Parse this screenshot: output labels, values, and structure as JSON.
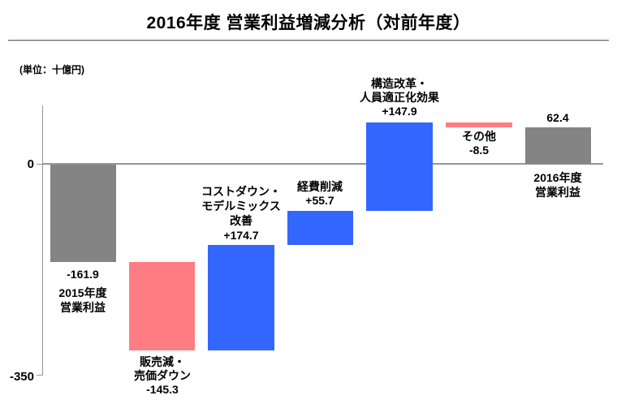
{
  "title": "2016年度 営業利益増減分析（対前年度）",
  "unit_label": "(単位：十億円)",
  "axis": {
    "zero_label": "0",
    "min_label": "-350"
  },
  "colors": {
    "total_bar": "#848484",
    "decrease_bar": "#ff7d82",
    "increase_bar": "#3366ff",
    "axis_line": "#969696"
  },
  "bars": [
    {
      "name_label": "2015年度\n営業利益",
      "value_label": "-161.9",
      "type": "total",
      "color": "#848484"
    },
    {
      "name_label": "販売減・\n売価ダウン",
      "value_label": "-145.3",
      "type": "decrease",
      "color": "#ff7d82"
    },
    {
      "name_label": "コストダウン・\nモデルミックス\n改善",
      "value_label": "+174.7",
      "type": "increase",
      "color": "#3366ff"
    },
    {
      "name_label": "経費削減",
      "value_label": "+55.7",
      "type": "increase",
      "color": "#3366ff"
    },
    {
      "name_label": "構造改革・\n人員適正化効果",
      "value_label": "+147.9",
      "type": "increase",
      "color": "#3366ff"
    },
    {
      "name_label": "その他",
      "value_label": "-8.5",
      "type": "decrease",
      "color": "#ff7d82"
    },
    {
      "name_label": "2016年度\n営業利益",
      "value_label": "62.4",
      "type": "total",
      "color": "#848484"
    }
  ],
  "chart_data": {
    "type": "bar",
    "subtype": "waterfall",
    "title": "2016年度 営業利益増減分析（対前年度）",
    "unit": "十億円",
    "xlabel": "",
    "ylabel": "",
    "ylim": [
      -350,
      100
    ],
    "yticks": [
      0,
      -350
    ],
    "grid": false,
    "legend": "none",
    "categories": [
      "2015年度 営業利益",
      "販売減・売価ダウン",
      "コストダウン・モデルミックス改善",
      "経費削減",
      "構造改革・人員適正化効果",
      "その他",
      "2016年度 営業利益"
    ],
    "values": [
      -161.9,
      -145.3,
      174.7,
      55.7,
      147.9,
      -8.5,
      62.4
    ],
    "bar_roles": [
      "start_total",
      "decrease",
      "increase",
      "increase",
      "increase",
      "decrease",
      "end_total"
    ],
    "bar_segments": [
      {
        "from": 0,
        "to": -161.9
      },
      {
        "from": -161.9,
        "to": -307.2
      },
      {
        "from": -307.2,
        "to": -132.5
      },
      {
        "from": -132.5,
        "to": -76.8
      },
      {
        "from": -76.8,
        "to": 71.1
      },
      {
        "from": 71.1,
        "to": 62.6
      },
      {
        "from": 0,
        "to": 62.4
      }
    ]
  }
}
